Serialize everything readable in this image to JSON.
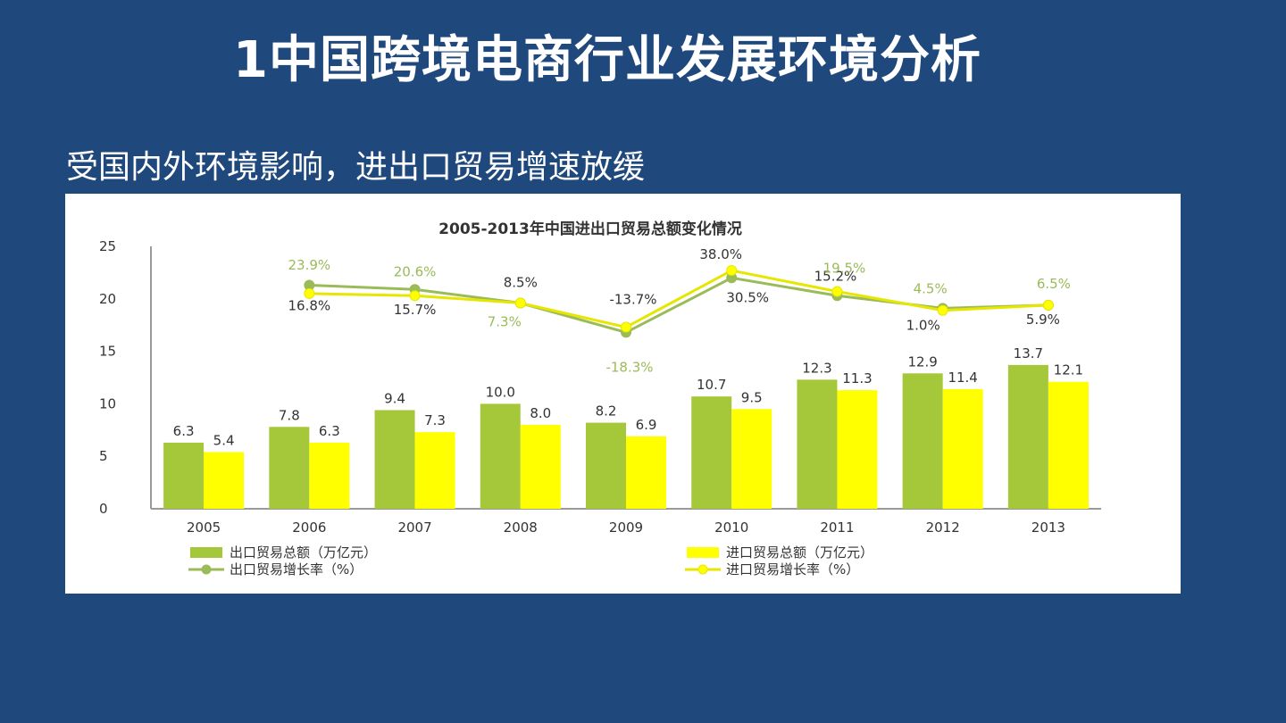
{
  "slide": {
    "title": "1中国跨境电商行业发展环境分析",
    "subtitle": "受国内外环境影响，进出口贸易增速放缓"
  },
  "colors": {
    "background": "#1f497d",
    "export": "#a5c83a",
    "import": "#ffff00",
    "export_rate_label": "#333333",
    "import_rate_label": "#9bbb59"
  },
  "chart_data": {
    "type": "bar",
    "title": "2005-2013年中国进出口贸易总额变化情况",
    "categories": [
      "2005",
      "2006",
      "2007",
      "2008",
      "2009",
      "2010",
      "2011",
      "2012",
      "2013"
    ],
    "ylim": [
      0,
      25
    ],
    "yticks": [
      0,
      5,
      10,
      15,
      20,
      25
    ],
    "series": [
      {
        "name": "出口贸易总额（万亿元）",
        "type": "bar",
        "color": "#a5c83a",
        "values": [
          6.3,
          7.8,
          9.4,
          10.0,
          8.2,
          10.7,
          12.3,
          12.9,
          13.7
        ],
        "labels": [
          "6.3",
          "7.8",
          "9.4",
          "10.0",
          "8.2",
          "10.7",
          "12.3",
          "12.9",
          "13.7"
        ]
      },
      {
        "name": "进口贸易总额（万亿元）",
        "type": "bar",
        "color": "#ffff00",
        "values": [
          5.4,
          6.3,
          7.3,
          8.0,
          6.9,
          9.5,
          11.3,
          11.4,
          12.1
        ],
        "labels": [
          "5.4",
          "6.3",
          "7.3",
          "8.0",
          "6.9",
          "9.5",
          "11.3",
          "11.4",
          "12.1"
        ]
      },
      {
        "name": "出口贸易增长率（%）",
        "type": "line",
        "color": "#9bbb59",
        "values": [
          null,
          16.8,
          15.7,
          8.5,
          -13.7,
          30.5,
          15.2,
          1.0,
          5.9
        ],
        "labels": [
          "",
          "16.8%",
          "15.7%",
          "8.5%",
          "-13.7%",
          "30.5%",
          "15.2%",
          "1.0%",
          "5.9%"
        ]
      },
      {
        "name": "进口贸易增长率（%）",
        "type": "line",
        "color": "#ffff00",
        "values": [
          null,
          23.9,
          20.6,
          7.3,
          -18.3,
          38.0,
          19.5,
          4.5,
          6.5
        ],
        "labels": [
          "",
          "23.9%",
          "20.6%",
          "7.3%",
          "-18.3%",
          "38.0%",
          "19.5%",
          "4.5%",
          "6.5%"
        ]
      }
    ],
    "line_display_y": {
      "export_rate": [
        null,
        21.3,
        20.9,
        19.6,
        16.8,
        22.0,
        20.3,
        19.1,
        19.4
      ],
      "import_rate": [
        null,
        20.5,
        20.3,
        19.6,
        17.3,
        22.7,
        20.7,
        18.9,
        19.4
      ]
    },
    "legend": [
      "出口贸易总额（万亿元）",
      "进口贸易总额（万亿元）",
      "出口贸易增长率（%）",
      "进口贸易增长率（%）"
    ]
  }
}
